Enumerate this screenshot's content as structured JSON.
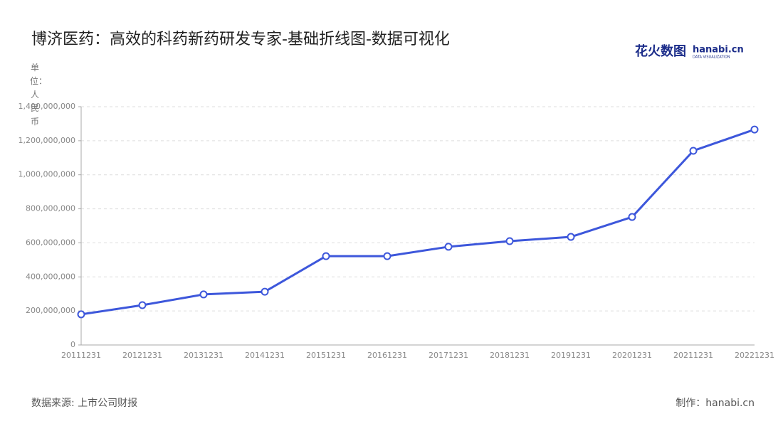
{
  "chart_data": {
    "type": "line",
    "title": "博济医药：高效的科药新药研发专家-基础折线图-数据可视化",
    "logo": {
      "brand": "花火数图",
      "site": "hanabi.cn",
      "tagline": "DATA VISUALIZATION"
    },
    "ylabel": "单位：人民币",
    "categories": [
      "20111231",
      "20121231",
      "20131231",
      "20141231",
      "20151231",
      "20161231",
      "20171231",
      "20181231",
      "20191231",
      "20201231",
      "20211231",
      "20221231"
    ],
    "values": [
      180000000,
      234000000,
      297000000,
      313000000,
      522000000,
      522000000,
      577000000,
      610000000,
      635000000,
      752000000,
      1141000000,
      1266000000
    ],
    "color": "#3d57db",
    "ylim": [
      0,
      1400000000
    ],
    "yticks": [
      0,
      {
        "value": 200000000,
        "label": "200,000,000"
      },
      {
        "value": 400000000,
        "label": "400,000,000"
      },
      {
        "value": 600000000,
        "label": "600,000,000"
      },
      {
        "value": 800000000,
        "label": "800,000,000"
      },
      {
        "value": 1000000000,
        "label": "1,000,000,000"
      },
      {
        "value": 1200000000,
        "label": "1,200,000,000"
      },
      {
        "value": 1400000000,
        "label": "1,400,000,000"
      }
    ],
    "grid": true,
    "source": "数据来源: 上市公司财报",
    "credit": "制作：hanabi.cn"
  }
}
